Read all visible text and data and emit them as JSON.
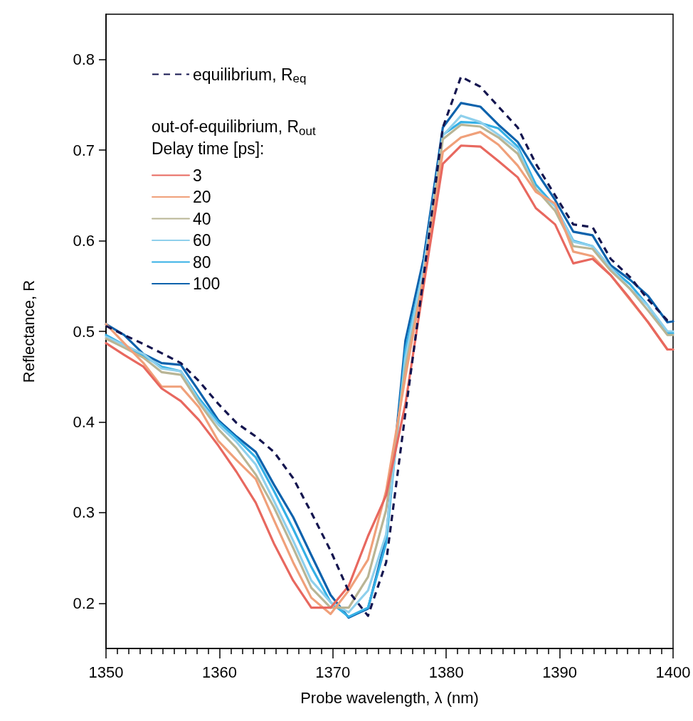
{
  "chart_data": {
    "type": "line",
    "xlabel": "Probe wavelength, λ (nm)",
    "ylabel": "Reflectance, R",
    "legend_title": "out-of-equilibrium, R$_{out}$\nDelay time [ps]:",
    "legend": "top left",
    "grid": false,
    "marker": "none",
    "xlim": [
      1350,
      1400
    ],
    "ylim": [
      0.15,
      0.85
    ],
    "yticks": [
      0.2,
      0.3,
      0.4,
      0.5,
      0.6,
      0.7,
      0.8
    ],
    "xticks": [
      1350,
      {
        "value": 1351,
        "label": null
      },
      {
        "value": 1352,
        "label": null
      },
      {
        "value": 1353,
        "label": null
      },
      {
        "value": 1354,
        "label": null
      },
      {
        "value": 1355,
        "label": null
      },
      {
        "value": 1356,
        "label": null
      },
      {
        "value": 1357,
        "label": null
      },
      {
        "value": 1358,
        "label": null
      },
      {
        "value": 1359,
        "label": null
      },
      1360,
      {
        "value": 1361,
        "label": null
      },
      {
        "value": 1362,
        "label": null
      },
      {
        "value": 1363,
        "label": null
      },
      {
        "value": 1364,
        "label": null
      },
      {
        "value": 1365,
        "label": null
      },
      {
        "value": 1366,
        "label": null
      },
      {
        "value": 1367,
        "label": null
      },
      {
        "value": 1368,
        "label": null
      },
      {
        "value": 1369,
        "label": null
      },
      1370,
      {
        "value": 1371,
        "label": null
      },
      {
        "value": 1372,
        "label": null
      },
      {
        "value": 1373,
        "label": null
      },
      {
        "value": 1374,
        "label": null
      },
      {
        "value": 1375,
        "label": null
      },
      {
        "value": 1376,
        "label": null
      },
      {
        "value": 1377,
        "label": null
      },
      {
        "value": 1378,
        "label": null
      },
      {
        "value": 1379,
        "label": null
      },
      1380,
      {
        "value": 1381,
        "label": null
      },
      {
        "value": 1382,
        "label": null
      },
      {
        "value": 1383,
        "label": null
      },
      {
        "value": 1384,
        "label": null
      },
      {
        "value": 1385,
        "label": null
      },
      {
        "value": 1386,
        "label": null
      },
      {
        "value": 1387,
        "label": null
      },
      {
        "value": 1388,
        "label": null
      },
      {
        "value": 1389,
        "label": null
      },
      1390,
      {
        "value": 1391,
        "label": null
      },
      {
        "value": 1392,
        "label": null
      },
      {
        "value": 1393,
        "label": null
      },
      {
        "value": 1394,
        "label": null
      },
      {
        "value": 1395,
        "label": null
      },
      {
        "value": 1396,
        "label": null
      },
      {
        "value": 1397,
        "label": null
      },
      {
        "value": 1398,
        "label": null
      },
      {
        "value": 1399,
        "label": null
      },
      1400
    ],
    "x": [
      1350,
      1351.6,
      1353.3,
      1354.9,
      1356.6,
      1358.2,
      1359.9,
      1361.5,
      1363.2,
      1364.8,
      1366.5,
      1368.1,
      1369.8,
      1371.4,
      1373.1,
      1374.7,
      1376.4,
      1378.0,
      1379.7,
      1381.3,
      1383.0,
      1384.6,
      1386.3,
      1387.9,
      1389.6,
      1391.2,
      1392.9,
      1394.5,
      1396.2,
      1397.8,
      1399.5,
      1400
    ],
    "series": [
      {
        "name": "equilibrium, R$_{eq}$",
        "color": "#14154f",
        "line_style": "dashed",
        "values": [
          0.506,
          0.496,
          0.486,
          0.476,
          0.465,
          0.445,
          0.42,
          0.399,
          0.384,
          0.367,
          0.338,
          0.3,
          0.258,
          0.213,
          0.186,
          0.245,
          0.41,
          0.56,
          0.725,
          0.781,
          0.77,
          0.748,
          0.725,
          0.685,
          0.65,
          0.618,
          0.615,
          0.58,
          0.56,
          0.535,
          0.512,
          0.512
        ]
      },
      {
        "name": "3",
        "color": "#e8685f",
        "line_style": "solid",
        "values": [
          0.487,
          0.474,
          0.461,
          0.437,
          0.423,
          0.402,
          0.374,
          0.345,
          0.311,
          0.266,
          0.225,
          0.195,
          0.195,
          0.219,
          0.274,
          0.319,
          0.42,
          0.55,
          0.685,
          0.705,
          0.704,
          0.688,
          0.67,
          0.636,
          0.618,
          0.575,
          0.58,
          0.562,
          0.536,
          0.51,
          0.48,
          0.48
        ]
      },
      {
        "name": "20",
        "color": "#f0a07a",
        "line_style": "solid",
        "values": [
          0.508,
          0.487,
          0.465,
          0.439,
          0.439,
          0.416,
          0.379,
          0.358,
          0.337,
          0.292,
          0.245,
          0.206,
          0.188,
          0.214,
          0.248,
          0.324,
          0.45,
          0.56,
          0.698,
          0.714,
          0.72,
          0.706,
          0.683,
          0.654,
          0.641,
          0.588,
          0.583,
          0.562,
          0.535,
          0.51,
          0.48,
          0.48
        ]
      },
      {
        "name": "40",
        "color": "#b9b595",
        "line_style": "solid",
        "values": [
          0.492,
          0.482,
          0.471,
          0.455,
          0.452,
          0.421,
          0.392,
          0.371,
          0.342,
          0.306,
          0.261,
          0.217,
          0.195,
          0.195,
          0.229,
          0.303,
          0.46,
          0.56,
          0.712,
          0.728,
          0.726,
          0.714,
          0.696,
          0.657,
          0.633,
          0.594,
          0.591,
          0.567,
          0.547,
          0.523,
          0.496,
          0.496
        ]
      },
      {
        "name": "60",
        "color": "#8fd0ec",
        "line_style": "solid",
        "values": [
          0.494,
          0.485,
          0.475,
          0.459,
          0.456,
          0.423,
          0.397,
          0.378,
          0.353,
          0.313,
          0.269,
          0.225,
          0.201,
          0.19,
          0.214,
          0.276,
          0.47,
          0.57,
          0.716,
          0.738,
          0.731,
          0.717,
          0.701,
          0.657,
          0.638,
          0.599,
          0.594,
          0.57,
          0.547,
          0.528,
          0.5,
          0.5
        ]
      },
      {
        "name": "80",
        "color": "#35b0e6",
        "line_style": "solid",
        "values": [
          0.496,
          0.485,
          0.473,
          0.461,
          0.456,
          0.426,
          0.4,
          0.382,
          0.361,
          0.324,
          0.282,
          0.24,
          0.201,
          0.185,
          0.195,
          0.266,
          0.48,
          0.57,
          0.717,
          0.731,
          0.73,
          0.724,
          0.704,
          0.662,
          0.638,
          0.6,
          0.594,
          0.57,
          0.552,
          0.528,
          0.498,
          0.498
        ]
      },
      {
        "name": "100",
        "color": "#0d62ac",
        "line_style": "solid",
        "values": [
          0.508,
          0.496,
          0.475,
          0.465,
          0.463,
          0.434,
          0.402,
          0.384,
          0.367,
          0.331,
          0.295,
          0.253,
          0.209,
          0.184,
          0.194,
          0.272,
          0.49,
          0.58,
          0.725,
          0.752,
          0.748,
          0.728,
          0.709,
          0.677,
          0.645,
          0.61,
          0.606,
          0.573,
          0.557,
          0.539,
          0.51,
          0.511
        ]
      }
    ]
  }
}
